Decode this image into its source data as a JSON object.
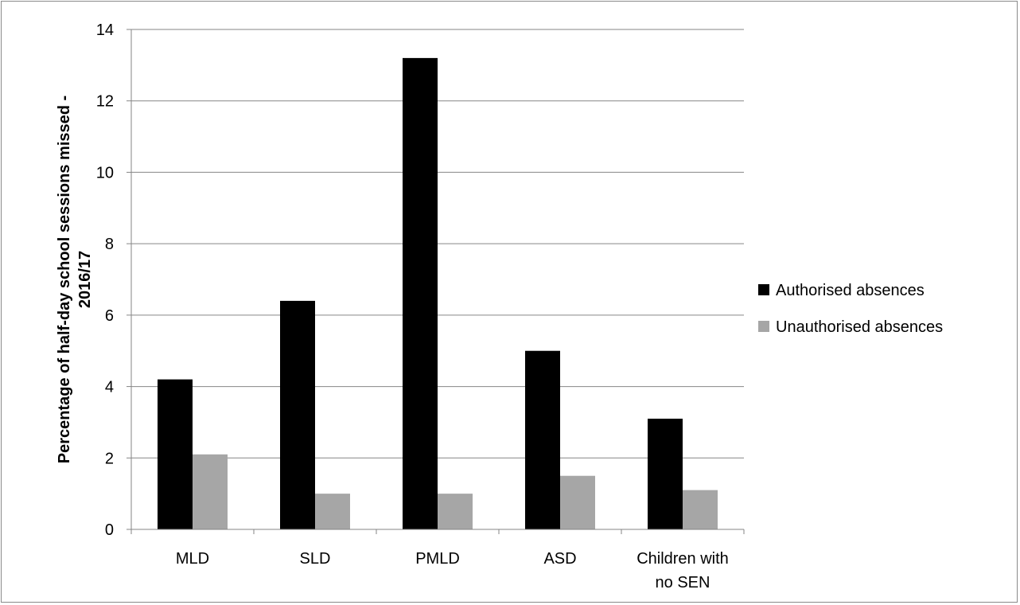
{
  "chart_data": {
    "type": "bar",
    "title": "",
    "xlabel": "",
    "ylabel_lines": [
      "Percentage of half-day school sessions missed -",
      "2016/17"
    ],
    "categories": [
      [
        "MLD"
      ],
      [
        "SLD"
      ],
      [
        "PMLD"
      ],
      [
        "ASD"
      ],
      [
        "Children with",
        "no SEN"
      ]
    ],
    "series": [
      {
        "name": "Authorised absences",
        "color": "#000000",
        "values": [
          4.2,
          6.4,
          13.2,
          5.0,
          3.1
        ]
      },
      {
        "name": "Unauthorised absences",
        "color": "#a6a6a6",
        "values": [
          2.1,
          1.0,
          1.0,
          1.5,
          1.1
        ]
      }
    ],
    "ylim": [
      0,
      14
    ],
    "yticks": [
      0,
      2,
      4,
      6,
      8,
      10,
      12,
      14
    ],
    "grid": true,
    "legend_position": "right"
  }
}
